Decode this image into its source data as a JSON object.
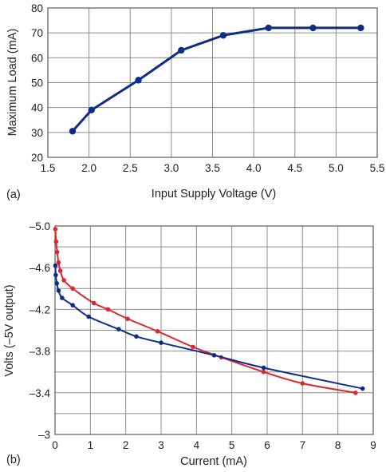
{
  "chart_data": [
    {
      "type": "line",
      "panel_label": "(a)",
      "xlabel": "Input Supply Voltage (V)",
      "ylabel": "Maximum Load (mA)",
      "xlim": [
        1.5,
        5.5
      ],
      "ylim": [
        20,
        80
      ],
      "xticks": [
        "1.5",
        "2.0",
        "2.5",
        "3.0",
        "3.5",
        "4.0",
        "4.5",
        "5.0",
        "5.5"
      ],
      "yticks": [
        "20",
        "30",
        "40",
        "50",
        "60",
        "70",
        "80"
      ],
      "grid": true,
      "series": [
        {
          "color": "#0e2d8a",
          "x": [
            1.8,
            2.03,
            2.6,
            3.12,
            3.63,
            4.18,
            4.72,
            5.3
          ],
          "y": [
            30.5,
            39,
            51,
            63,
            69,
            72,
            72,
            72
          ]
        }
      ]
    },
    {
      "type": "line",
      "panel_label": "(b)",
      "xlabel": "Current (mA)",
      "ylabel": "Volts (–5V output)",
      "xlim": [
        0,
        9
      ],
      "ylim": [
        -5.0,
        -3.0
      ],
      "xticks": [
        "0",
        "1",
        "2",
        "3",
        "4",
        "5",
        "6",
        "7",
        "8",
        "9"
      ],
      "yticks": [
        "–5.0",
        "–4.6",
        "–4.2",
        "–3.8",
        "–3.4",
        "–3"
      ],
      "grid": true,
      "series": [
        {
          "color": "#e0262b",
          "x": [
            0.01,
            0.03,
            0.06,
            0.1,
            0.15,
            0.25,
            0.5,
            1.1,
            1.5,
            2.05,
            2.9,
            3.9,
            4.7,
            5.9,
            7.0,
            8.5
          ],
          "y": [
            -4.97,
            -4.85,
            -4.75,
            -4.65,
            -4.57,
            -4.48,
            -4.4,
            -4.26,
            -4.2,
            -4.11,
            -3.99,
            -3.84,
            -3.74,
            -3.6,
            -3.49,
            -3.4
          ]
        },
        {
          "color": "#0e2d8a",
          "x": [
            0.01,
            0.02,
            0.05,
            0.1,
            0.2,
            0.5,
            0.95,
            1.8,
            2.3,
            3.0,
            4.5,
            5.9,
            8.7
          ],
          "y": [
            -4.62,
            -4.53,
            -4.45,
            -4.38,
            -4.31,
            -4.24,
            -4.13,
            -4.01,
            -3.94,
            -3.88,
            -3.76,
            -3.64,
            -3.44
          ]
        }
      ]
    }
  ]
}
